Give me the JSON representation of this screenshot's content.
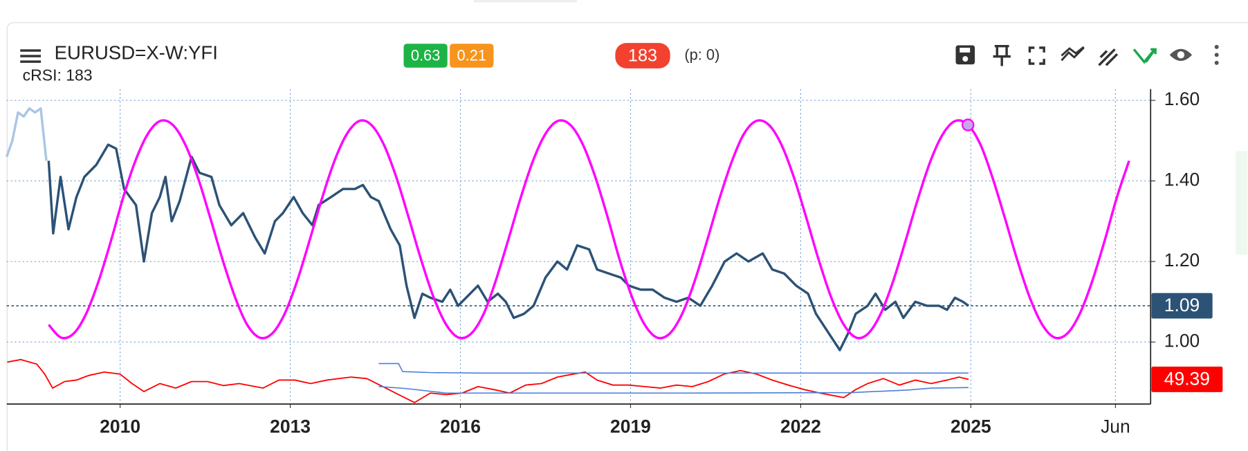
{
  "chart_data": {
    "type": "line",
    "title": "EURUSD=X-W:YFI",
    "subtitle": "cRSI: 183",
    "badges": [
      {
        "text": "0.63",
        "color": "#1db445"
      },
      {
        "text": "0.21",
        "color": "#f7941d"
      },
      {
        "text": "183",
        "color": "#f2412f"
      }
    ],
    "note": "(p: 0)",
    "xlim": [
      2008.0,
      2028.17
    ],
    "xticks": [
      2010,
      2013,
      2016,
      2019,
      2022,
      2025,
      {
        "value": 2027.55,
        "label": "Jun"
      }
    ],
    "ylim": [
      0.846,
      1.628
    ],
    "yticks": [
      {
        "value": 1.6,
        "label": "1.60"
      },
      {
        "value": 1.4,
        "label": "1.40"
      },
      {
        "value": 1.2,
        "label": "1.20"
      },
      {
        "value": 1.0,
        "label": "1.00"
      }
    ],
    "y2lim": [
      0,
      630
    ],
    "grid": true,
    "series": [
      {
        "color": "#aac6e3",
        "x": [
          2008.0,
          2008.1,
          2008.2,
          2008.3,
          2008.4,
          2008.5,
          2008.6,
          2008.7
        ],
        "values": [
          1.46,
          1.5,
          1.57,
          1.56,
          1.58,
          1.57,
          1.58,
          1.45
        ]
      },
      {
        "color": "#2c5276",
        "last_label": "1.09",
        "reference_line": true,
        "x": [
          2008.74,
          2008.82,
          2008.95,
          2009.09,
          2009.23,
          2009.37,
          2009.58,
          2009.79,
          2009.93,
          2010.07,
          2010.28,
          2010.42,
          2010.56,
          2010.7,
          2010.8,
          2010.91,
          2011.05,
          2011.26,
          2011.4,
          2011.61,
          2011.75,
          2011.96,
          2012.17,
          2012.38,
          2012.55,
          2012.73,
          2012.87,
          2013.06,
          2013.22,
          2013.39,
          2013.5,
          2013.72,
          2013.93,
          2014.14,
          2014.28,
          2014.42,
          2014.56,
          2014.77,
          2014.93,
          2015.05,
          2015.19,
          2015.33,
          2015.47,
          2015.68,
          2015.82,
          2015.96,
          2016.17,
          2016.31,
          2016.48,
          2016.66,
          2016.8,
          2016.94,
          2017.12,
          2017.29,
          2017.5,
          2017.71,
          2017.88,
          2018.06,
          2018.27,
          2018.41,
          2018.62,
          2018.83,
          2018.97,
          2019.18,
          2019.39,
          2019.6,
          2019.81,
          2020.02,
          2020.23,
          2020.44,
          2020.66,
          2020.87,
          2021.08,
          2021.33,
          2021.5,
          2021.71,
          2021.92,
          2022.13,
          2022.27,
          2022.41,
          2022.55,
          2022.69,
          2022.83,
          2022.97,
          2023.18,
          2023.32,
          2023.49,
          2023.67,
          2023.81,
          2024.02,
          2024.23,
          2024.44,
          2024.58,
          2024.72,
          2024.86,
          2024.96
        ],
        "values": [
          1.45,
          1.27,
          1.41,
          1.28,
          1.36,
          1.41,
          1.44,
          1.49,
          1.48,
          1.38,
          1.34,
          1.2,
          1.32,
          1.36,
          1.41,
          1.3,
          1.35,
          1.46,
          1.42,
          1.41,
          1.34,
          1.29,
          1.32,
          1.26,
          1.22,
          1.3,
          1.32,
          1.36,
          1.32,
          1.29,
          1.34,
          1.36,
          1.38,
          1.38,
          1.39,
          1.36,
          1.35,
          1.28,
          1.24,
          1.14,
          1.06,
          1.12,
          1.11,
          1.1,
          1.13,
          1.09,
          1.12,
          1.14,
          1.1,
          1.12,
          1.1,
          1.06,
          1.07,
          1.09,
          1.16,
          1.2,
          1.18,
          1.24,
          1.23,
          1.18,
          1.17,
          1.16,
          1.14,
          1.13,
          1.13,
          1.11,
          1.1,
          1.11,
          1.09,
          1.14,
          1.2,
          1.22,
          1.2,
          1.22,
          1.18,
          1.17,
          1.14,
          1.12,
          1.07,
          1.04,
          1.01,
          0.98,
          1.02,
          1.07,
          1.09,
          1.12,
          1.08,
          1.1,
          1.06,
          1.1,
          1.09,
          1.09,
          1.08,
          1.11,
          1.1,
          1.09
        ]
      },
      {
        "color": "#ff00ff",
        "smooth": true,
        "marker_index": 74,
        "x": [
          2008.74,
          2008.96,
          2009.18,
          2009.4,
          2009.62,
          2009.84,
          2010.05,
          2010.27,
          2010.49,
          2010.71,
          2010.93,
          2011.15,
          2011.37,
          2011.59,
          2011.81,
          2012.03,
          2012.24,
          2012.46,
          2012.68,
          2012.9,
          2013.12,
          2013.34,
          2013.56,
          2013.78,
          2014.0,
          2014.22,
          2014.43,
          2014.65,
          2014.87,
          2015.09,
          2015.31,
          2015.53,
          2015.75,
          2015.97,
          2016.19,
          2016.41,
          2016.62,
          2016.84,
          2017.06,
          2017.28,
          2017.5,
          2017.72,
          2017.94,
          2018.16,
          2018.38,
          2018.6,
          2018.81,
          2019.03,
          2019.25,
          2019.47,
          2019.69,
          2019.91,
          2020.13,
          2020.35,
          2020.57,
          2020.79,
          2021.0,
          2021.22,
          2021.44,
          2021.66,
          2021.88,
          2022.1,
          2022.32,
          2022.54,
          2022.76,
          2022.98,
          2023.19,
          2023.41,
          2023.63,
          2023.85,
          2024.07,
          2024.29,
          2024.51,
          2024.73,
          2024.95,
          2025.17,
          2025.38,
          2025.6,
          2025.82,
          2026.04,
          2026.26,
          2026.48,
          2026.7,
          2026.92,
          2027.14,
          2027.36,
          2027.57,
          2027.79
        ],
        "values": [
          1.043,
          1.011,
          1.021,
          1.07,
          1.151,
          1.252,
          1.357,
          1.45,
          1.517,
          1.549,
          1.539,
          1.49,
          1.409,
          1.308,
          1.203,
          1.11,
          1.043,
          1.011,
          1.021,
          1.07,
          1.151,
          1.252,
          1.357,
          1.45,
          1.517,
          1.549,
          1.539,
          1.49,
          1.409,
          1.308,
          1.203,
          1.11,
          1.043,
          1.011,
          1.021,
          1.07,
          1.151,
          1.252,
          1.357,
          1.45,
          1.517,
          1.549,
          1.539,
          1.49,
          1.409,
          1.308,
          1.203,
          1.11,
          1.043,
          1.011,
          1.021,
          1.07,
          1.151,
          1.252,
          1.357,
          1.45,
          1.517,
          1.549,
          1.539,
          1.49,
          1.409,
          1.308,
          1.203,
          1.11,
          1.043,
          1.011,
          1.021,
          1.07,
          1.151,
          1.252,
          1.357,
          1.45,
          1.517,
          1.549,
          1.539,
          1.49,
          1.409,
          1.308,
          1.203,
          1.11,
          1.043,
          1.011,
          1.021,
          1.07,
          1.151,
          1.252,
          1.357,
          1.45
        ]
      },
      {
        "color": "#ff0000",
        "axis": "y2",
        "last_label": "49.39",
        "x": [
          2008.01,
          2008.25,
          2008.53,
          2008.67,
          2008.81,
          2009.02,
          2009.23,
          2009.44,
          2009.72,
          2010.0,
          2010.21,
          2010.42,
          2010.7,
          2010.98,
          2011.26,
          2011.54,
          2011.82,
          2012.1,
          2012.52,
          2012.8,
          2013.08,
          2013.36,
          2013.65,
          2014.07,
          2014.35,
          2014.63,
          2014.91,
          2015.19,
          2015.47,
          2015.75,
          2016.03,
          2016.31,
          2016.59,
          2016.87,
          2017.15,
          2017.43,
          2017.71,
          2017.99,
          2018.2,
          2018.41,
          2018.69,
          2018.97,
          2019.25,
          2019.53,
          2019.81,
          2020.09,
          2020.37,
          2020.65,
          2020.94,
          2021.22,
          2021.5,
          2021.78,
          2022.06,
          2022.34,
          2022.62,
          2022.76,
          2022.97,
          2023.18,
          2023.46,
          2023.74,
          2024.02,
          2024.3,
          2024.58,
          2024.79,
          2024.96
        ],
        "values": [
          84,
          89,
          80,
          60,
          32,
          45,
          48,
          57,
          64,
          60,
          41,
          25,
          41,
          32,
          45,
          45,
          37,
          41,
          32,
          48,
          48,
          41,
          48,
          54,
          51,
          35,
          19,
          3,
          22,
          19,
          22,
          35,
          29,
          22,
          38,
          41,
          54,
          60,
          64,
          48,
          38,
          38,
          35,
          32,
          38,
          35,
          45,
          60,
          67,
          60,
          48,
          38,
          29,
          22,
          16,
          13,
          29,
          41,
          51,
          38,
          48,
          41,
          48,
          54,
          49.39
        ]
      },
      {
        "color": "#4a7fd8",
        "axis": "y2",
        "x": [
          2014.56,
          2014.91,
          2014.98,
          2015.47,
          2016.31,
          2019.25,
          2021.22,
          2024.96
        ],
        "values": [
          81,
          81,
          65,
          63,
          62,
          62,
          62,
          62
        ]
      },
      {
        "color": "#4a7fd8",
        "axis": "y2",
        "x": [
          2014.56,
          2015.05,
          2015.75,
          2019.81,
          2022.9,
          2023.88,
          2024.3,
          2024.96
        ],
        "values": [
          35,
          31,
          22,
          22,
          23,
          28,
          32,
          33
        ]
      }
    ]
  }
}
